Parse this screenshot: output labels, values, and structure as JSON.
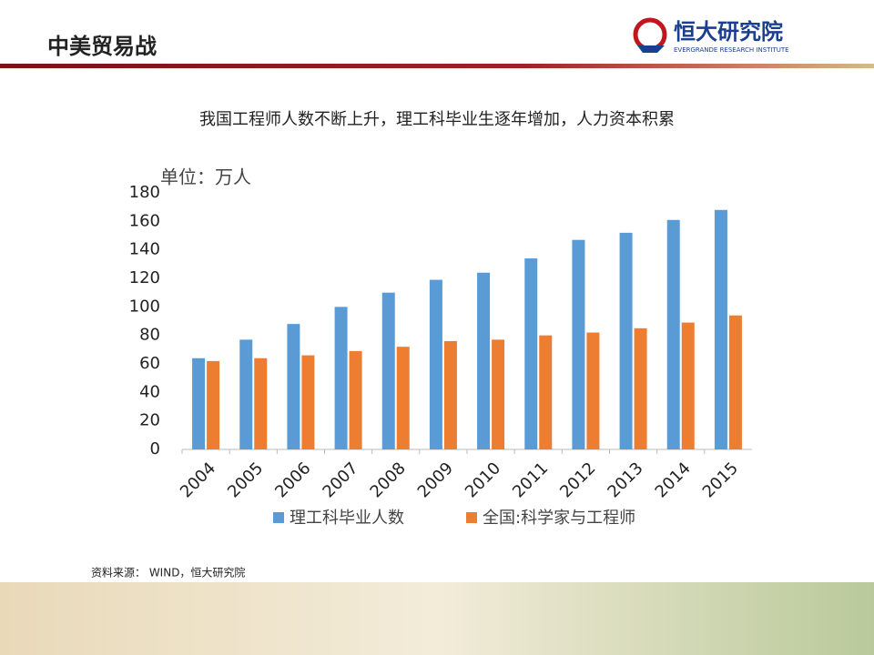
{
  "header": {
    "title": "中美贸易战",
    "logo_name": "恒大研究院",
    "logo_subtitle": "EVERGRANDE RESEARCH INSTITUTE"
  },
  "chart_data": {
    "type": "bar",
    "title": "我国工程师人数不断上升，理工科毕业生逐年增加，人力资本积累",
    "unit_label": "单位：万人",
    "categories": [
      "2004",
      "2005",
      "2006",
      "2007",
      "2008",
      "2009",
      "2010",
      "2011",
      "2012",
      "2013",
      "2014",
      "2015"
    ],
    "series": [
      {
        "name": "理工科毕业人数",
        "color": "#5b9bd5",
        "values": [
          64,
          77,
          88,
          100,
          110,
          119,
          124,
          134,
          147,
          152,
          161,
          168
        ]
      },
      {
        "name": "全国:科学家与工程师",
        "color": "#ed7d31",
        "values": [
          62,
          64,
          66,
          69,
          72,
          76,
          77,
          80,
          82,
          85,
          89,
          94
        ]
      }
    ],
    "ylim": [
      0,
      180
    ],
    "yticks": [
      0,
      20,
      40,
      60,
      80,
      100,
      120,
      140,
      160,
      180
    ],
    "grid": false,
    "legend": "bottom"
  },
  "source": "资料来源： WIND，恒大研究院"
}
